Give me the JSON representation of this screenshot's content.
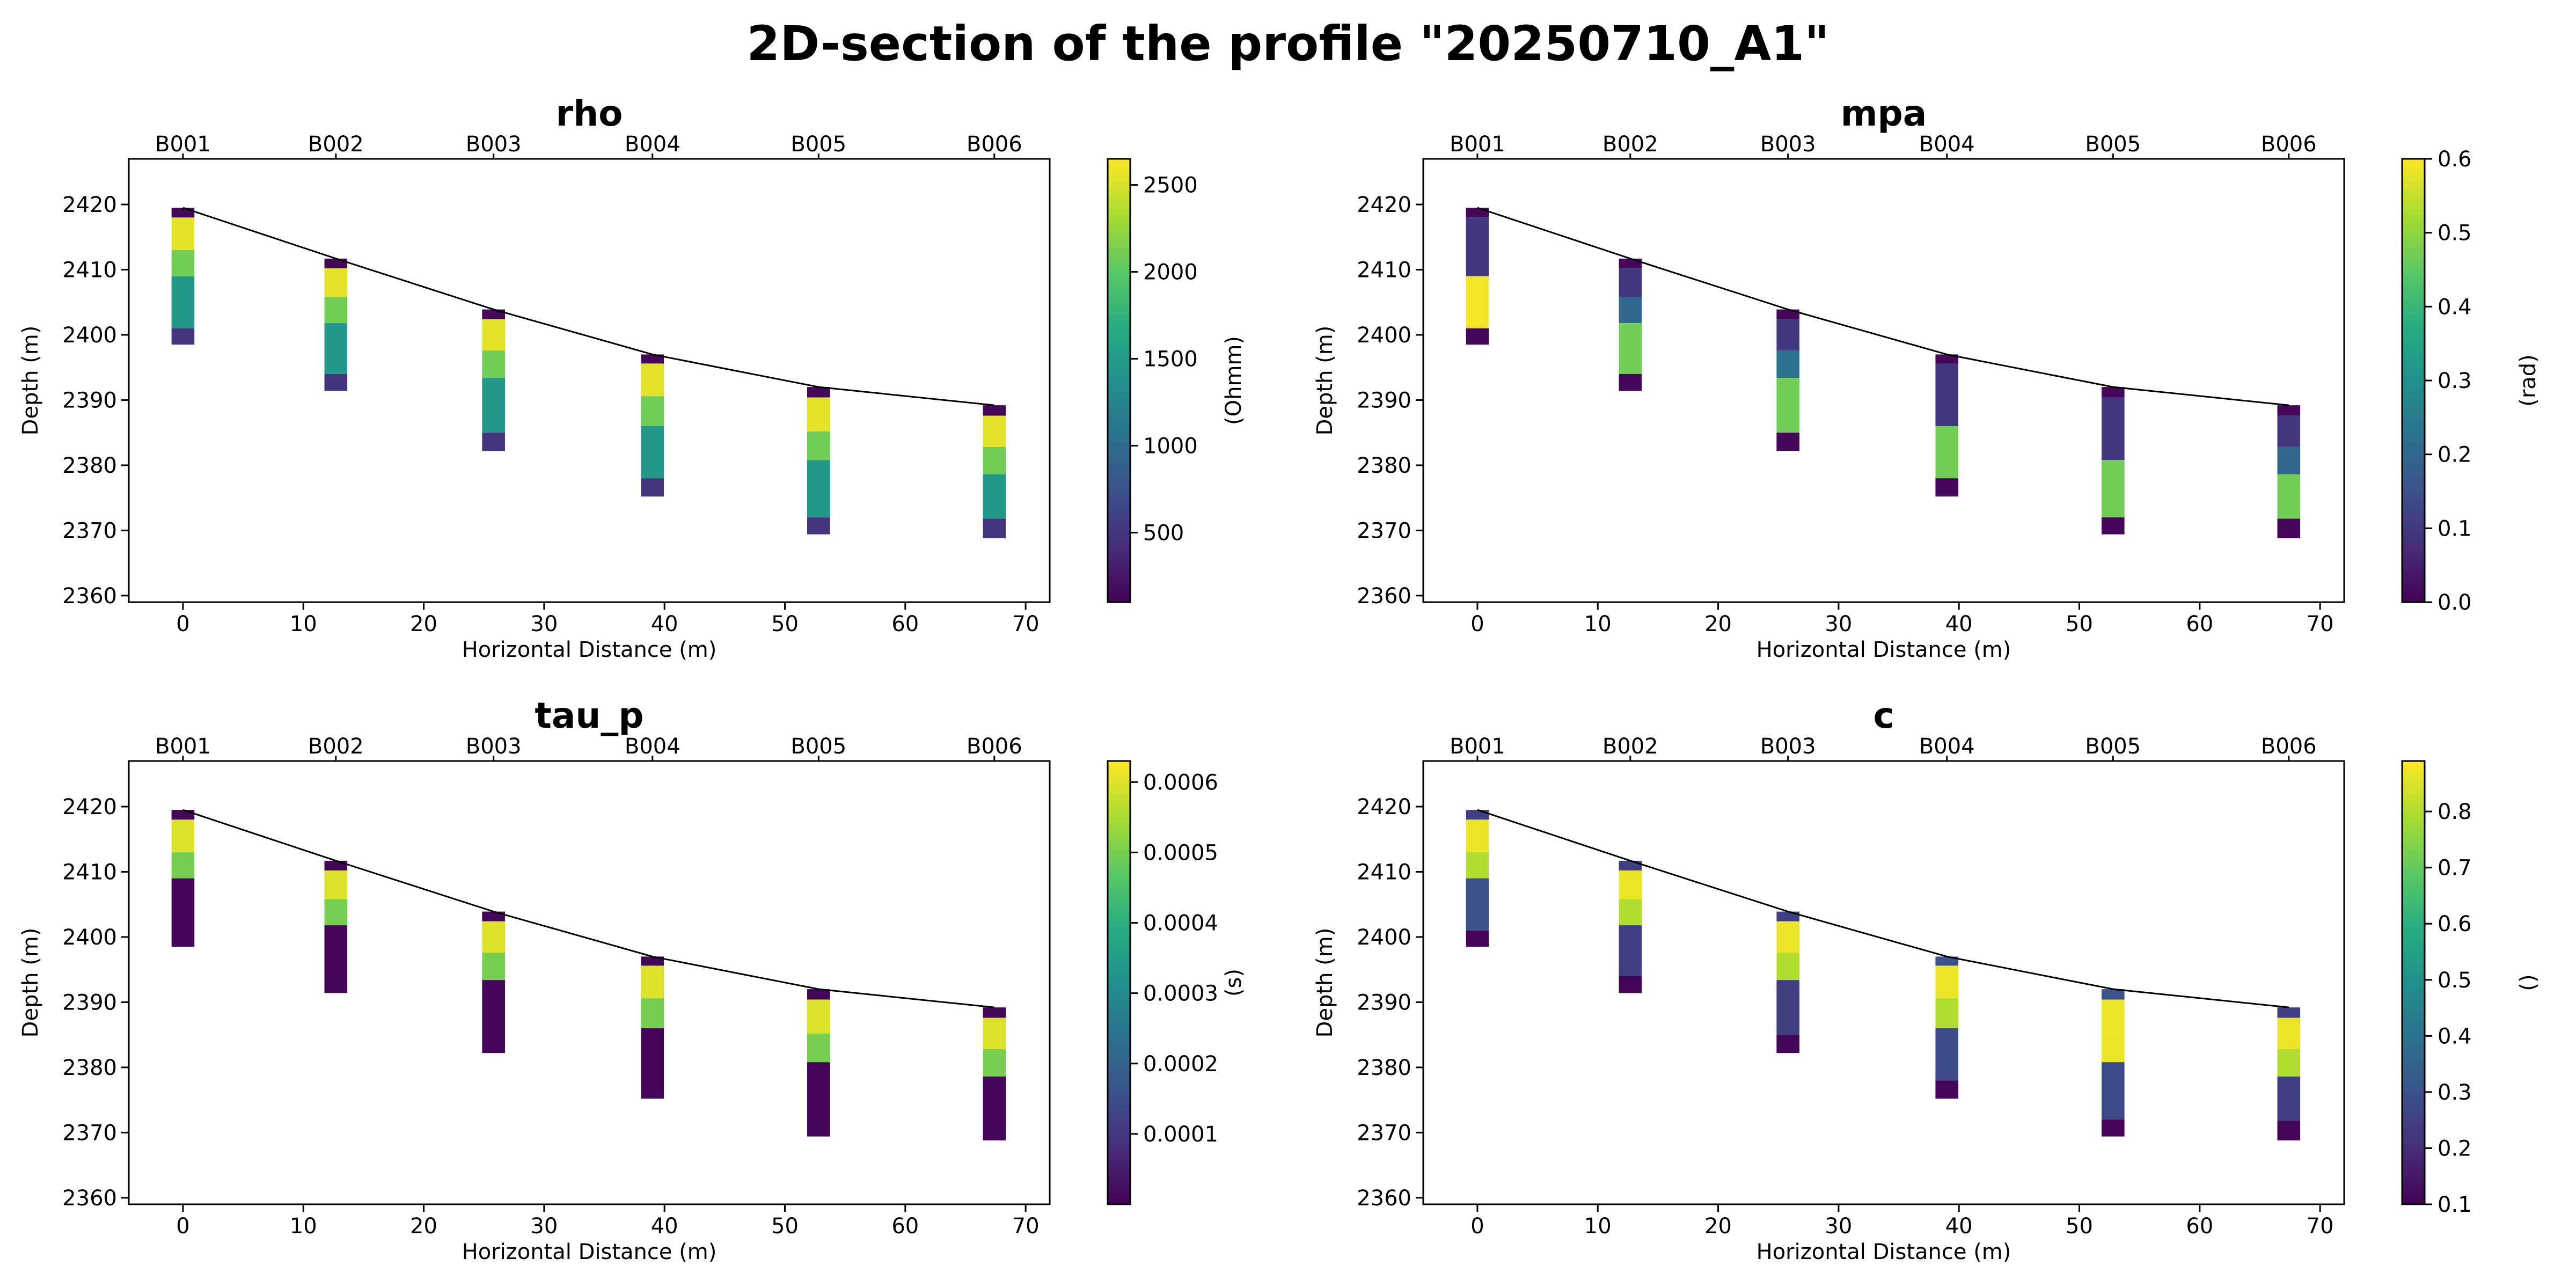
{
  "figure": {
    "title": "2D-section of the profile \"20250710_A1\""
  },
  "chart_data": [
    {
      "type": "heatmap",
      "title": "rho",
      "xlabel": "Horizontal Distance (m)",
      "ylabel": "Depth (m)",
      "xlim": [
        -4.5,
        72
      ],
      "ylim": [
        2359,
        2427
      ],
      "xticks": [
        0,
        10,
        20,
        30,
        40,
        50,
        60,
        70
      ],
      "yticks": [
        2360,
        2370,
        2380,
        2390,
        2400,
        2410,
        2420
      ],
      "colormap": "viridis",
      "colorbar": {
        "label": "(Ohmm)",
        "min": 100,
        "max": 2650,
        "ticks": [
          500,
          1000,
          1500,
          2000,
          2500
        ]
      },
      "surface": {
        "x": [
          0,
          12.7,
          25.8,
          39,
          52.8,
          67.4
        ],
        "z": [
          2419.5,
          2411.7,
          2403.9,
          2397,
          2392,
          2389.2
        ]
      },
      "boreholes": [
        {
          "name": "B001",
          "x": 0,
          "cells": [
            [
              2419.5,
              2418,
              150
            ],
            [
              2418,
              2413,
              2550
            ],
            [
              2413,
              2409,
              2100
            ],
            [
              2409,
              2401,
              1450
            ],
            [
              2401,
              2398.5,
              500
            ]
          ]
        },
        {
          "name": "B002",
          "x": 12.7,
          "cells": [
            [
              2411.7,
              2410.2,
              150
            ],
            [
              2410.2,
              2405.8,
              2550
            ],
            [
              2405.8,
              2401.8,
              2100
            ],
            [
              2401.8,
              2394,
              1450
            ],
            [
              2394,
              2391.4,
              500
            ]
          ]
        },
        {
          "name": "B003",
          "x": 25.8,
          "cells": [
            [
              2403.9,
              2402.4,
              150
            ],
            [
              2402.4,
              2397.6,
              2550
            ],
            [
              2397.6,
              2393.4,
              2100
            ],
            [
              2393.4,
              2385,
              1450
            ],
            [
              2385,
              2382.2,
              500
            ]
          ]
        },
        {
          "name": "B004",
          "x": 39,
          "cells": [
            [
              2397,
              2395.6,
              150
            ],
            [
              2395.6,
              2390.6,
              2550
            ],
            [
              2390.6,
              2386,
              2100
            ],
            [
              2386,
              2378,
              1450
            ],
            [
              2378,
              2375.2,
              500
            ]
          ]
        },
        {
          "name": "B005",
          "x": 52.8,
          "cells": [
            [
              2392,
              2390.4,
              150
            ],
            [
              2390.4,
              2385.2,
              2550
            ],
            [
              2385.2,
              2380.8,
              2100
            ],
            [
              2380.8,
              2372,
              1450
            ],
            [
              2372,
              2369.4,
              500
            ]
          ]
        },
        {
          "name": "B006",
          "x": 67.4,
          "cells": [
            [
              2389.2,
              2387.6,
              150
            ],
            [
              2387.6,
              2382.8,
              2550
            ],
            [
              2382.8,
              2378.6,
              2100
            ],
            [
              2378.6,
              2371.8,
              1450
            ],
            [
              2371.8,
              2368.8,
              500
            ]
          ]
        }
      ]
    },
    {
      "type": "heatmap",
      "title": "mpa",
      "xlabel": "Horizontal Distance (m)",
      "ylabel": "Depth (m)",
      "xlim": [
        -4.5,
        72
      ],
      "ylim": [
        2359,
        2427
      ],
      "xticks": [
        0,
        10,
        20,
        30,
        40,
        50,
        60,
        70
      ],
      "yticks": [
        2360,
        2370,
        2380,
        2390,
        2400,
        2410,
        2420
      ],
      "colormap": "viridis",
      "colorbar": {
        "label": "(rad)",
        "min": 0,
        "max": 0.6,
        "ticks": [
          0,
          0.1,
          0.2,
          0.3,
          0.4,
          0.5,
          0.6
        ],
        "tick_labels": [
          "0.0",
          "0.1",
          "0.2",
          "0.3",
          "0.4",
          "0.5",
          "0.6"
        ]
      },
      "surface": {
        "x": [
          0,
          12.7,
          25.8,
          39,
          52.8,
          67.4
        ],
        "z": [
          2419.5,
          2411.7,
          2403.9,
          2397,
          2392,
          2389.2
        ]
      },
      "boreholes": [
        {
          "name": "B001",
          "x": 0,
          "cells": [
            [
              2419.5,
              2418,
              0.01
            ],
            [
              2418,
              2409,
              0.1
            ],
            [
              2409,
              2401,
              0.59
            ],
            [
              2401,
              2398.5,
              0.01
            ]
          ]
        },
        {
          "name": "B002",
          "x": 12.7,
          "cells": [
            [
              2411.7,
              2410.2,
              0.01
            ],
            [
              2410.2,
              2405.8,
              0.1
            ],
            [
              2405.8,
              2401.8,
              0.2
            ],
            [
              2401.8,
              2394,
              0.47
            ],
            [
              2394,
              2391.4,
              0.01
            ]
          ]
        },
        {
          "name": "B003",
          "x": 25.8,
          "cells": [
            [
              2403.9,
              2402.4,
              0.01
            ],
            [
              2402.4,
              2397.6,
              0.1
            ],
            [
              2397.6,
              2393.4,
              0.22
            ],
            [
              2393.4,
              2385,
              0.47
            ],
            [
              2385,
              2382.2,
              0.01
            ]
          ]
        },
        {
          "name": "B004",
          "x": 39,
          "cells": [
            [
              2397,
              2395.6,
              0.01
            ],
            [
              2395.6,
              2386,
              0.1
            ],
            [
              2386,
              2378,
              0.47
            ],
            [
              2378,
              2375.2,
              0.01
            ]
          ]
        },
        {
          "name": "B005",
          "x": 52.8,
          "cells": [
            [
              2392,
              2390.4,
              0.01
            ],
            [
              2390.4,
              2380.8,
              0.1
            ],
            [
              2380.8,
              2372,
              0.47
            ],
            [
              2372,
              2369.4,
              0.01
            ]
          ]
        },
        {
          "name": "B006",
          "x": 67.4,
          "cells": [
            [
              2389.2,
              2387.6,
              0.01
            ],
            [
              2387.6,
              2382.8,
              0.1
            ],
            [
              2382.8,
              2378.6,
              0.2
            ],
            [
              2378.6,
              2371.8,
              0.47
            ],
            [
              2371.8,
              2368.8,
              0.01
            ]
          ]
        }
      ]
    },
    {
      "type": "heatmap",
      "title": "tau_p",
      "xlabel": "Horizontal Distance (m)",
      "ylabel": "Depth (m)",
      "xlim": [
        -4.5,
        72
      ],
      "ylim": [
        2359,
        2427
      ],
      "xticks": [
        0,
        10,
        20,
        30,
        40,
        50,
        60,
        70
      ],
      "yticks": [
        2360,
        2370,
        2380,
        2390,
        2400,
        2410,
        2420
      ],
      "colormap": "viridis",
      "colorbar": {
        "label": "(s)",
        "min": 0,
        "max": 0.00063,
        "ticks": [
          0.0001,
          0.0002,
          0.0003,
          0.0004,
          0.0005,
          0.0006
        ],
        "tick_labels": [
          "0.0001",
          "0.0002",
          "0.0003",
          "0.0004",
          "0.0005",
          "0.0006"
        ]
      },
      "surface": {
        "x": [
          0,
          12.7,
          25.8,
          39,
          52.8,
          67.4
        ],
        "z": [
          2419.5,
          2411.7,
          2403.9,
          2397,
          2392,
          2389.2
        ]
      },
      "boreholes": [
        {
          "name": "B001",
          "x": 0,
          "cells": [
            [
              2419.5,
              2418,
              1e-05
            ],
            [
              2418,
              2413,
              0.0006
            ],
            [
              2413,
              2409,
              0.0005
            ],
            [
              2409,
              2398.5,
              1e-05
            ]
          ]
        },
        {
          "name": "B002",
          "x": 12.7,
          "cells": [
            [
              2411.7,
              2410.2,
              1e-05
            ],
            [
              2410.2,
              2405.8,
              0.0006
            ],
            [
              2405.8,
              2401.8,
              0.0005
            ],
            [
              2401.8,
              2391.4,
              1e-05
            ]
          ]
        },
        {
          "name": "B003",
          "x": 25.8,
          "cells": [
            [
              2403.9,
              2402.4,
              1e-05
            ],
            [
              2402.4,
              2397.6,
              0.0006
            ],
            [
              2397.6,
              2393.4,
              0.0005
            ],
            [
              2393.4,
              2382.2,
              1e-05
            ]
          ]
        },
        {
          "name": "B004",
          "x": 39,
          "cells": [
            [
              2397,
              2395.6,
              1e-05
            ],
            [
              2395.6,
              2390.6,
              0.0006
            ],
            [
              2390.6,
              2386,
              0.0005
            ],
            [
              2386,
              2375.2,
              1e-05
            ]
          ]
        },
        {
          "name": "B005",
          "x": 52.8,
          "cells": [
            [
              2392,
              2390.4,
              1e-05
            ],
            [
              2390.4,
              2385.2,
              0.0006
            ],
            [
              2385.2,
              2380.8,
              0.0005
            ],
            [
              2380.8,
              2369.4,
              1e-05
            ]
          ]
        },
        {
          "name": "B006",
          "x": 67.4,
          "cells": [
            [
              2389.2,
              2387.6,
              1e-05
            ],
            [
              2387.6,
              2382.8,
              0.0006
            ],
            [
              2382.8,
              2378.6,
              0.0005
            ],
            [
              2378.6,
              2368.8,
              1e-05
            ]
          ]
        }
      ]
    },
    {
      "type": "heatmap",
      "title": "c",
      "xlabel": "Horizontal Distance (m)",
      "ylabel": "Depth (m)",
      "xlim": [
        -4.5,
        72
      ],
      "ylim": [
        2359,
        2427
      ],
      "xticks": [
        0,
        10,
        20,
        30,
        40,
        50,
        60,
        70
      ],
      "yticks": [
        2360,
        2370,
        2380,
        2390,
        2400,
        2410,
        2420
      ],
      "colormap": "viridis",
      "colorbar": {
        "label": "()",
        "min": 0.1,
        "max": 0.89,
        "ticks": [
          0.1,
          0.2,
          0.3,
          0.4,
          0.5,
          0.6,
          0.7,
          0.8
        ],
        "tick_labels": [
          "0.1",
          "0.2",
          "0.3",
          "0.4",
          "0.5",
          "0.6",
          "0.7",
          "0.8"
        ]
      },
      "surface": {
        "x": [
          0,
          12.7,
          25.8,
          39,
          52.8,
          67.4
        ],
        "z": [
          2419.5,
          2411.7,
          2403.9,
          2397,
          2392,
          2389.2
        ]
      },
      "boreholes": [
        {
          "name": "B001",
          "x": 0,
          "cells": [
            [
              2419.5,
              2418,
              0.25
            ],
            [
              2418,
              2413,
              0.87
            ],
            [
              2413,
              2409,
              0.8
            ],
            [
              2409,
              2401,
              0.3
            ],
            [
              2401,
              2398.5,
              0.11
            ]
          ]
        },
        {
          "name": "B002",
          "x": 12.7,
          "cells": [
            [
              2411.7,
              2410.2,
              0.25
            ],
            [
              2410.2,
              2405.8,
              0.87
            ],
            [
              2405.8,
              2401.8,
              0.8
            ],
            [
              2401.8,
              2394,
              0.25
            ],
            [
              2394,
              2391.4,
              0.11
            ]
          ]
        },
        {
          "name": "B003",
          "x": 25.8,
          "cells": [
            [
              2403.9,
              2402.4,
              0.25
            ],
            [
              2402.4,
              2397.6,
              0.87
            ],
            [
              2397.6,
              2393.4,
              0.8
            ],
            [
              2393.4,
              2385,
              0.25
            ],
            [
              2385,
              2382.2,
              0.11
            ]
          ]
        },
        {
          "name": "B004",
          "x": 39,
          "cells": [
            [
              2397,
              2395.6,
              0.3
            ],
            [
              2395.6,
              2390.6,
              0.87
            ],
            [
              2390.6,
              2386,
              0.8
            ],
            [
              2386,
              2378,
              0.28
            ],
            [
              2378,
              2375.2,
              0.11
            ]
          ]
        },
        {
          "name": "B005",
          "x": 52.8,
          "cells": [
            [
              2392,
              2390.4,
              0.3
            ],
            [
              2390.4,
              2385.2,
              0.87
            ],
            [
              2385.2,
              2380.8,
              0.87
            ],
            [
              2380.8,
              2372,
              0.28
            ],
            [
              2372,
              2369.4,
              0.11
            ]
          ]
        },
        {
          "name": "B006",
          "x": 67.4,
          "cells": [
            [
              2389.2,
              2387.6,
              0.25
            ],
            [
              2387.6,
              2382.8,
              0.87
            ],
            [
              2382.8,
              2378.6,
              0.8
            ],
            [
              2378.6,
              2371.8,
              0.25
            ],
            [
              2371.8,
              2368.8,
              0.11
            ]
          ]
        }
      ]
    }
  ]
}
